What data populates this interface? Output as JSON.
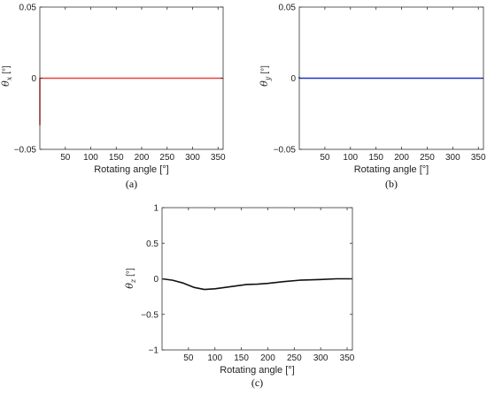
{
  "chart_data": [
    {
      "type": "line",
      "panel_label": "(a)",
      "xlabel": "Rotating angle [°]",
      "ylabel_symbol": "θ",
      "ylabel_sub": "x",
      "ylabel_unit": "[°]",
      "xlim": [
        0,
        360
      ],
      "ylim": [
        -0.05,
        0.05
      ],
      "xticks": [
        50,
        100,
        150,
        200,
        250,
        300,
        350
      ],
      "yticks": [
        -0.05,
        0,
        0.05
      ],
      "ytick_labels": [
        "−0.05",
        "0",
        "0.05"
      ],
      "grid": false,
      "color": "#e8403a",
      "series": [
        {
          "x": [
            0,
            0,
            360
          ],
          "y": [
            -0.033,
            0,
            0
          ]
        }
      ]
    },
    {
      "type": "line",
      "panel_label": "(b)",
      "xlabel": "Rotating angle [°]",
      "ylabel_symbol": "θ",
      "ylabel_sub": "y",
      "ylabel_unit": "[°]",
      "xlim": [
        0,
        360
      ],
      "ylim": [
        -0.05,
        0.05
      ],
      "xticks": [
        50,
        100,
        150,
        200,
        250,
        300,
        350
      ],
      "yticks": [
        -0.05,
        0,
        0.05
      ],
      "ytick_labels": [
        "−0.05",
        "0",
        "0.05"
      ],
      "grid": false,
      "color": "#2231c9",
      "series": [
        {
          "x": [
            0,
            0,
            360
          ],
          "y": [
            0.001,
            0,
            0
          ]
        }
      ]
    },
    {
      "type": "line",
      "panel_label": "(c)",
      "xlabel": "Rotating angle [°]",
      "ylabel_symbol": "θ",
      "ylabel_sub": "z",
      "ylabel_unit": "[°]",
      "xlim": [
        0,
        360
      ],
      "ylim": [
        -1,
        1
      ],
      "xticks": [
        50,
        100,
        150,
        200,
        250,
        300,
        350
      ],
      "yticks": [
        -1,
        -0.5,
        0,
        0.5,
        1
      ],
      "ytick_labels": [
        "−1",
        "−0.5",
        "0",
        "0.5",
        "1"
      ],
      "grid": false,
      "color": "#111111",
      "series": [
        {
          "x": [
            0,
            20,
            40,
            60,
            80,
            100,
            120,
            140,
            160,
            180,
            200,
            230,
            260,
            300,
            330,
            360
          ],
          "y": [
            0,
            -0.02,
            -0.06,
            -0.12,
            -0.15,
            -0.14,
            -0.12,
            -0.1,
            -0.08,
            -0.075,
            -0.065,
            -0.04,
            -0.02,
            -0.01,
            0,
            0
          ]
        }
      ]
    }
  ]
}
